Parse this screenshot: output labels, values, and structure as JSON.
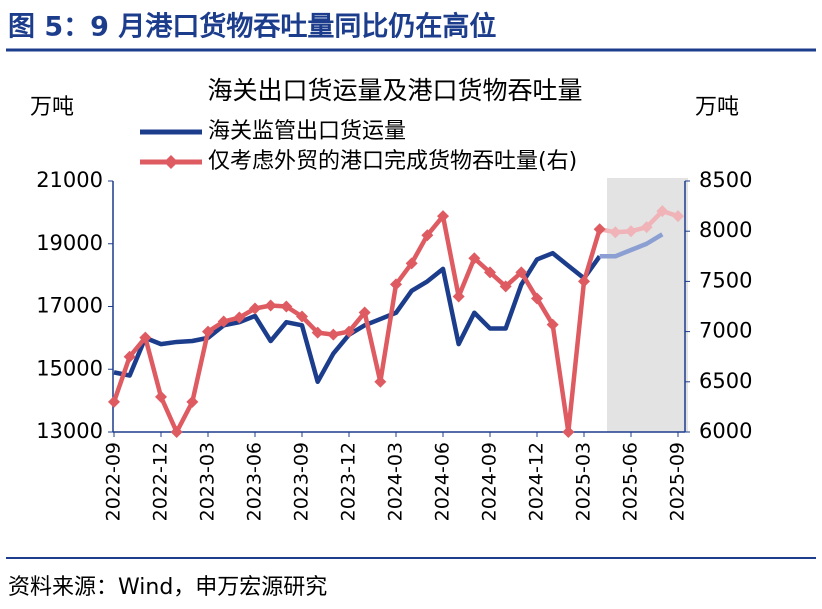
{
  "header": {
    "title": "图 5：9 月港口货物吞吐量同比仍在高位"
  },
  "chart_data": {
    "type": "line",
    "title": "海关出口货运量及港口货物吞吐量",
    "y_label": "万吨",
    "y2_label": "万吨",
    "categories": [
      "2022-09",
      null,
      null,
      "2022-12",
      null,
      null,
      "2023-03",
      null,
      null,
      "2023-06",
      null,
      null,
      "2023-09",
      null,
      null,
      "2023-12",
      null,
      null,
      "2024-03",
      null,
      null,
      "2024-06",
      null,
      null,
      "2024-09",
      null,
      null,
      "2024-12",
      null,
      null,
      "2025-03",
      null,
      null,
      "2025-06",
      null,
      null,
      "2025-09"
    ],
    "series": [
      {
        "name": "海关监管出口货运量",
        "color": "#1c3d8c",
        "light_color": "#8c9fd2",
        "axis": "y",
        "values": [
          14900,
          14800,
          16000,
          15800,
          15870,
          15900,
          16000,
          16400,
          16500,
          16700,
          15900,
          16500,
          16400,
          14600,
          15500,
          16100,
          16400,
          16600,
          16800,
          17500,
          17800,
          18200,
          15800,
          16800,
          16300,
          16300,
          17700,
          18500,
          18700,
          18300,
          17900,
          18600,
          18600,
          18800,
          19000,
          19300,
          null
        ]
      },
      {
        "name": "仅考虑外贸的港口完成货物吞吐量(右)",
        "color": "#de5b61",
        "light_color": "#f0b4b8",
        "axis": "y2",
        "values": [
          6300,
          6750,
          6940,
          6350,
          6000,
          6300,
          7000,
          7100,
          7140,
          7230,
          7260,
          7250,
          7150,
          6990,
          6970,
          7000,
          7190,
          6500,
          7470,
          7680,
          7960,
          8150,
          7350,
          7730,
          7590,
          7450,
          7590,
          7330,
          7070,
          6000,
          7500,
          8020,
          7990,
          8000,
          8040,
          8200,
          8150
        ]
      }
    ],
    "ylim": [
      13000,
      21000
    ],
    "yticks": [
      13000,
      15000,
      17000,
      19000,
      21000
    ],
    "y2lim": [
      6000,
      8500
    ],
    "y2ticks": [
      6000,
      6500,
      7000,
      7500,
      8000,
      8500
    ]
  },
  "footer": {
    "source": "资料来源：Wind，申万宏源研究"
  }
}
